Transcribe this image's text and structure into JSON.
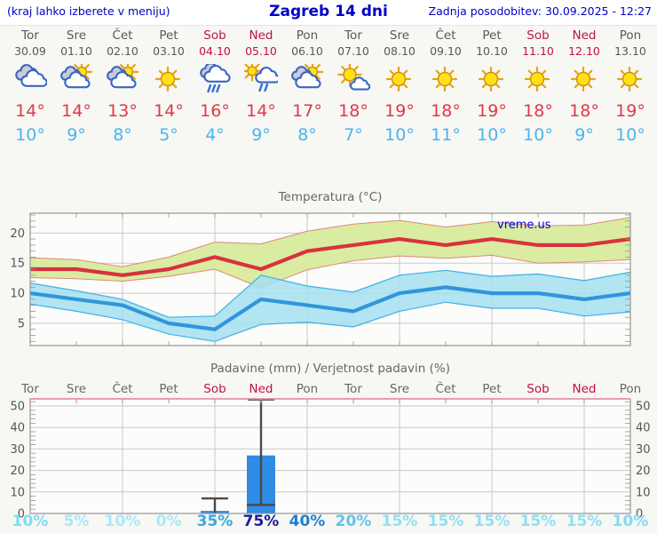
{
  "header": {
    "left": "(kraj lahko izberete v meniju)",
    "title": "Zagreb 14 dni",
    "right": "Zadnja posodobitev: 30.09.2025 - 12:27"
  },
  "watermark": "vreme.us",
  "days": [
    {
      "name": "Tor",
      "date": "30.09",
      "icon": "cloudy-icon",
      "tmax": 14,
      "tmin": 10,
      "weekend": false
    },
    {
      "name": "Sre",
      "date": "01.10",
      "icon": "partly-cloudy-icon",
      "tmax": 14,
      "tmin": 9,
      "weekend": false
    },
    {
      "name": "Čet",
      "date": "02.10",
      "icon": "partly-cloudy-icon",
      "tmax": 13,
      "tmin": 8,
      "weekend": false
    },
    {
      "name": "Pet",
      "date": "03.10",
      "icon": "sunny-icon",
      "tmax": 14,
      "tmin": 5,
      "weekend": false
    },
    {
      "name": "Sob",
      "date": "04.10",
      "icon": "rain-icon",
      "tmax": 16,
      "tmin": 4,
      "weekend": true
    },
    {
      "name": "Ned",
      "date": "05.10",
      "icon": "sun-shower-icon",
      "tmax": 14,
      "tmin": 9,
      "weekend": true
    },
    {
      "name": "Pon",
      "date": "06.10",
      "icon": "partly-cloudy-icon",
      "tmax": 17,
      "tmin": 8,
      "weekend": false
    },
    {
      "name": "Tor",
      "date": "07.10",
      "icon": "mostly-sunny-icon",
      "tmax": 18,
      "tmin": 7,
      "weekend": false
    },
    {
      "name": "Sre",
      "date": "08.10",
      "icon": "sunny-icon",
      "tmax": 19,
      "tmin": 10,
      "weekend": false
    },
    {
      "name": "Čet",
      "date": "09.10",
      "icon": "sunny-icon",
      "tmax": 18,
      "tmin": 11,
      "weekend": false
    },
    {
      "name": "Pet",
      "date": "10.10",
      "icon": "sunny-icon",
      "tmax": 19,
      "tmin": 10,
      "weekend": false
    },
    {
      "name": "Sob",
      "date": "11.10",
      "icon": "sunny-icon",
      "tmax": 18,
      "tmin": 10,
      "weekend": true
    },
    {
      "name": "Ned",
      "date": "12.10",
      "icon": "sunny-icon",
      "tmax": 18,
      "tmin": 9,
      "weekend": true
    },
    {
      "name": "Pon",
      "date": "13.10",
      "icon": "sunny-icon",
      "tmax": 19,
      "tmin": 10,
      "weekend": false
    }
  ],
  "chart_data": [
    {
      "type": "line",
      "title": "Temperatura (°C)",
      "categories": [
        "Tor",
        "Sre",
        "Čet",
        "Pet",
        "Sob",
        "Ned",
        "Pon",
        "Tor",
        "Sre",
        "Čet",
        "Pet",
        "Sob",
        "Ned",
        "Pon"
      ],
      "ylim": [
        1.3,
        23.3
      ],
      "yticks": [
        5,
        10,
        15,
        20
      ],
      "grid": true,
      "series": [
        {
          "name": "max_temp",
          "values": [
            14,
            14,
            13,
            14,
            16,
            14,
            17,
            18,
            19,
            18,
            19,
            18,
            18,
            19
          ]
        },
        {
          "name": "max_band_upper",
          "values": [
            15.9,
            15.6,
            14.4,
            16.0,
            18.5,
            18.2,
            20.3,
            21.5,
            22.1,
            21.0,
            21.9,
            21.2,
            21.3,
            22.6
          ]
        },
        {
          "name": "max_band_lower",
          "values": [
            12.6,
            12.4,
            12.0,
            12.8,
            14.0,
            10.9,
            13.9,
            15.4,
            16.2,
            15.8,
            16.3,
            15.0,
            15.2,
            15.6
          ]
        },
        {
          "name": "min_temp",
          "values": [
            10,
            9,
            8,
            5,
            4,
            9,
            8,
            7,
            10,
            11,
            10,
            10,
            9,
            10
          ]
        },
        {
          "name": "min_band_upper",
          "values": [
            11.7,
            10.4,
            9.0,
            6.0,
            6.2,
            13.0,
            11.2,
            10.2,
            13.0,
            13.8,
            12.8,
            13.2,
            12.1,
            13.5
          ]
        },
        {
          "name": "min_band_lower",
          "values": [
            8.2,
            7.0,
            5.6,
            3.2,
            2.0,
            4.8,
            5.2,
            4.4,
            7.0,
            8.5,
            7.5,
            7.5,
            6.2,
            6.9
          ]
        }
      ]
    },
    {
      "type": "bar",
      "title": "Padavine (mm) / Verjetnost padavin (%)",
      "categories": [
        "Tor",
        "Sre",
        "Čet",
        "Pet",
        "Sob",
        "Ned",
        "Pon",
        "Tor",
        "Sre",
        "Čet",
        "Pet",
        "Sob",
        "Ned",
        "Pon"
      ],
      "ylim": [
        0,
        53.5
      ],
      "yticks": [
        0,
        10,
        20,
        30,
        40,
        50
      ],
      "values_mm": [
        0,
        0,
        0,
        0,
        1.2,
        27,
        0,
        0,
        0,
        0,
        0,
        0,
        0,
        0
      ],
      "whiskers": [
        {
          "index": 4,
          "low": 0,
          "high": 7
        },
        {
          "index": 5,
          "low": 4,
          "high": 53
        }
      ],
      "probability_pct": [
        10,
        5,
        10,
        0,
        35,
        75,
        40,
        20,
        15,
        15,
        15,
        15,
        15,
        10
      ],
      "probability_colors": [
        "#7edcf4",
        "#a9e9f8",
        "#a9e9f8",
        "#a9e9f8",
        "#3aa7e2",
        "#1a1a9e",
        "#1d7fd6",
        "#5ec3ee",
        "#8fe0f5",
        "#8fe0f5",
        "#8fe0f5",
        "#8fe0f5",
        "#8fe0f5",
        "#7edcf4"
      ]
    }
  ],
  "colors": {
    "header_text": "#0000cc",
    "weekday": "#585858",
    "weekend": "#c0104e",
    "temp_high": "#df3a45",
    "temp_low": "#47b6ec",
    "red_line": "#d8323e",
    "green_band": "#d9eca2",
    "green_band_edge": "#e08878",
    "blue_line": "#2f96db",
    "blue_band": "#a5dff0",
    "blue_band_edge": "#3fb0e8",
    "bar": "#2e8ce4",
    "whisker": "#4a4a4a",
    "grid": "#c9c9c9",
    "border": "#959595",
    "axis_text": "#555555",
    "chart_title": "#666666",
    "precip_top_border": "#e8899e",
    "plot_bg": "#fcfcfa"
  }
}
